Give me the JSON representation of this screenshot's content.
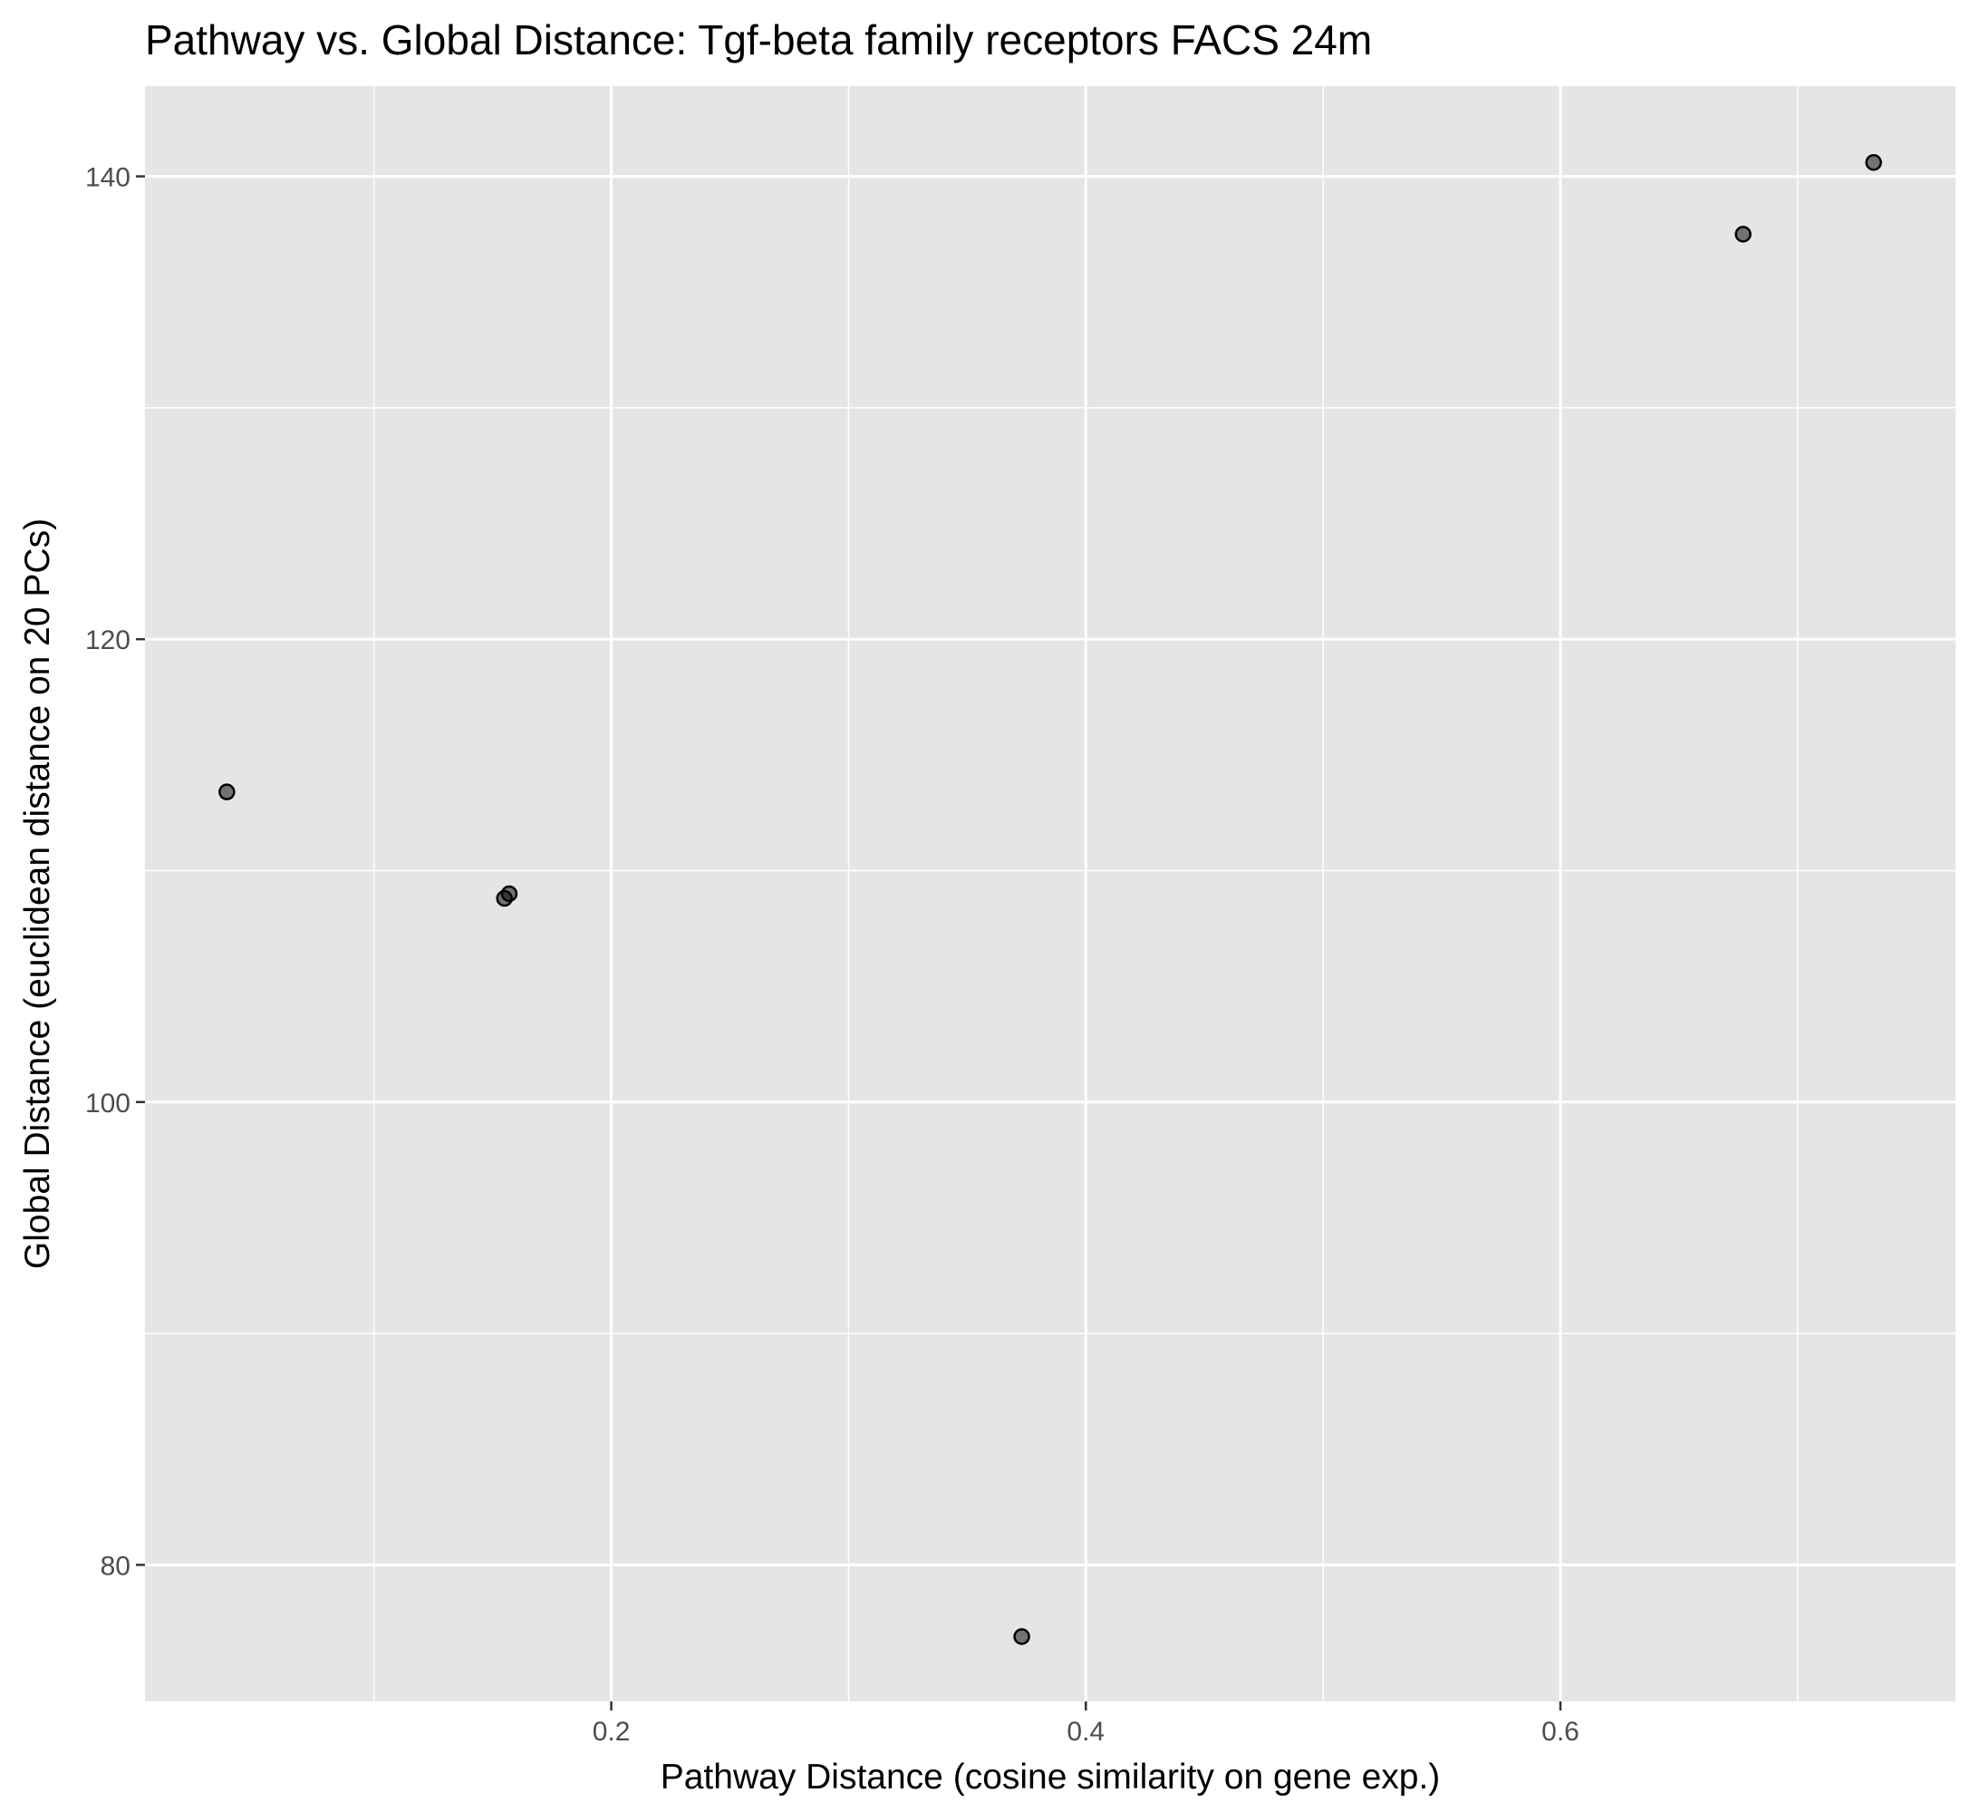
{
  "chart_data": {
    "type": "scatter",
    "title": "Pathway vs. Global Distance: Tgf-beta family receptors FACS 24m",
    "xlabel": "Pathway Distance (cosine similarity on gene exp.)",
    "ylabel": "Global Distance (euclidean distance on 20 PCs)",
    "xlim": [
      0.0035,
      0.7665
    ],
    "ylim": [
      74.1,
      143.9
    ],
    "x_major_ticks": [
      0.2,
      0.4,
      0.6
    ],
    "x_minor_ticks": [
      0.1,
      0.3,
      0.5,
      0.7
    ],
    "y_major_ticks": [
      80,
      100,
      120,
      140
    ],
    "y_minor_ticks": [
      90,
      110,
      130
    ],
    "x_tick_labels": [
      "0.2",
      "0.4",
      "0.6"
    ],
    "y_tick_labels": [
      "80",
      "100",
      "120",
      "140"
    ],
    "grid": true,
    "legend": "none",
    "point_color": "#000000",
    "panel_background": "#e5e5e5",
    "gridline_color": "#ffffff",
    "points": [
      {
        "x": 0.038,
        "y": 113.4
      },
      {
        "x": 0.155,
        "y": 108.8
      },
      {
        "x": 0.157,
        "y": 109.0
      },
      {
        "x": 0.373,
        "y": 76.9
      },
      {
        "x": 0.677,
        "y": 137.5
      },
      {
        "x": 0.732,
        "y": 140.6
      }
    ]
  }
}
